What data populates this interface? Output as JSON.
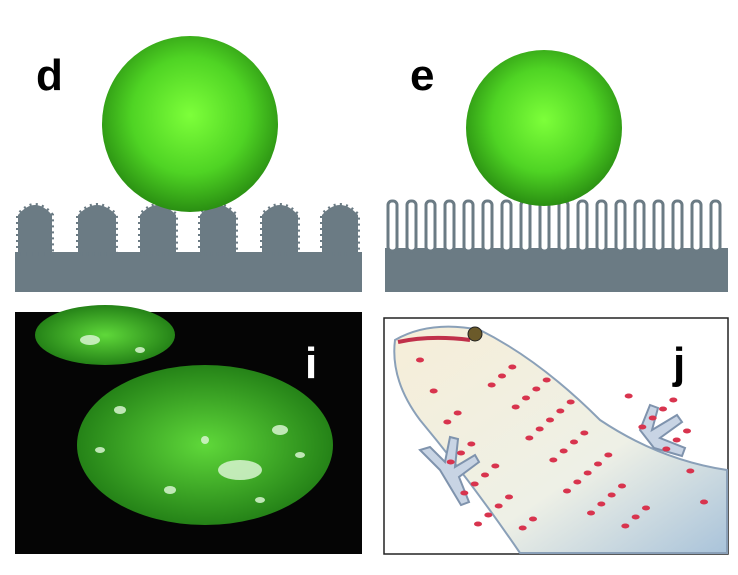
{
  "panels": [
    {
      "label": "d"
    },
    {
      "label": "e"
    },
    {
      "label": "i"
    },
    {
      "label": "j"
    }
  ]
}
